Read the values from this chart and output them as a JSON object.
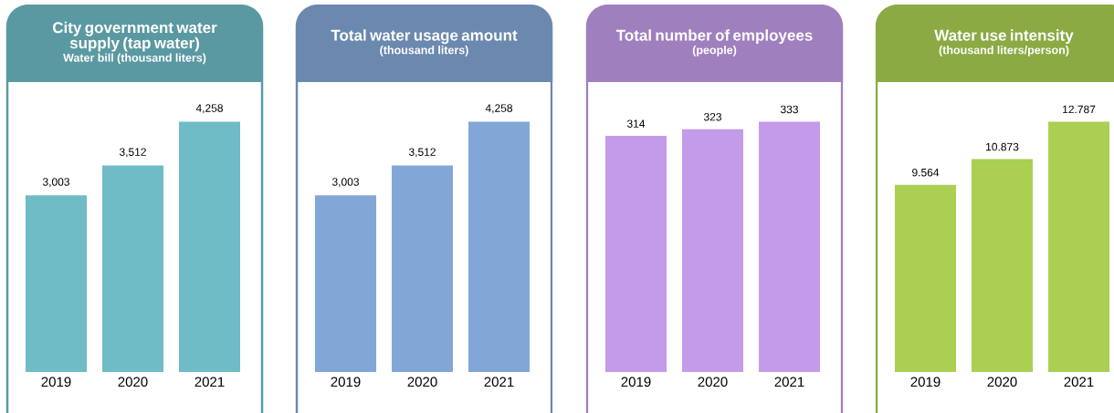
{
  "chart_data": [
    {
      "type": "bar",
      "title": "City government water supply (tap water)",
      "subtitle": "Water bill (thousand liters)",
      "categories": [
        "2019",
        "2020",
        "2021"
      ],
      "values": [
        3003,
        3512,
        4258
      ],
      "value_labels": [
        "3,003",
        "3,512",
        "4,258"
      ],
      "color": "#6fbbc6",
      "tick_labels": "x"
    },
    {
      "type": "bar",
      "title": "Total water usage amount",
      "subtitle": "(thousand liters)",
      "categories": [
        "2019",
        "2020",
        "2021"
      ],
      "values": [
        3003,
        3512,
        4258
      ],
      "value_labels": [
        "3,003",
        "3,512",
        "4,258"
      ],
      "color": "#82a7d6",
      "tick_labels": "x"
    },
    {
      "type": "bar",
      "title": "Total number of employees",
      "subtitle": "(people)",
      "categories": [
        "2019",
        "2020",
        "2021"
      ],
      "values": [
        314,
        323,
        333
      ],
      "value_labels": [
        "314",
        "323",
        "333"
      ],
      "color": "#c39be9",
      "tick_labels": "x"
    },
    {
      "type": "bar",
      "title": "Water use intensity",
      "subtitle": "(thousand liters/person)",
      "categories": [
        "2019",
        "2020",
        "2021"
      ],
      "values": [
        9.564,
        10.873,
        12.787
      ],
      "value_labels": [
        "9.564",
        "10.873",
        "12.787"
      ],
      "color": "#aacf52",
      "tick_labels": "x"
    }
  ]
}
